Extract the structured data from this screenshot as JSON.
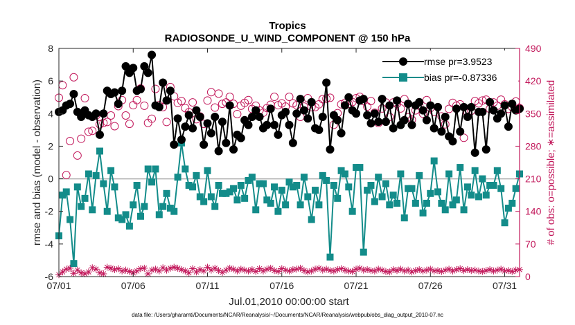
{
  "chart_data": {
    "type": "line",
    "title": "Tropics",
    "subtitle": "RADIOSONDE_U_WIND_COMPONENT @ 150 hPa",
    "xlabel": "Jul.01,2010 00:00:00 start",
    "ylabel": "rmse and bias (model - observation)",
    "ylabel_right": "# of obs: o=possible; ∗=assimilated",
    "footer": "data file: /Users/gharamti/Documents/NCAR/Reanalysis/~/Documents/NCAR/Reanalysis/webpub/obs_diag_output_2010-07.nc",
    "xlim": [
      0,
      31
    ],
    "ylim": [
      -6,
      8
    ],
    "ylim_right": [
      0,
      490
    ],
    "x_ticks": [
      0,
      5,
      10,
      15,
      20,
      25,
      30
    ],
    "x_tick_labels": [
      "07/01",
      "07/06",
      "07/11",
      "07/16",
      "07/21",
      "07/26",
      "07/31"
    ],
    "y_ticks": [
      -6,
      -4,
      -2,
      0,
      2,
      4,
      6,
      8
    ],
    "y_tick_labels": [
      "-6",
      "-4",
      "-2",
      "0",
      "2",
      "4",
      "6",
      "8"
    ],
    "y_ticks_right": [
      0,
      70,
      140,
      210,
      280,
      350,
      420,
      490
    ],
    "y_tick_labels_right": [
      "0",
      "70",
      "140",
      "210",
      "280",
      "350",
      "420",
      "490"
    ],
    "legend": {
      "position": "top-right"
    },
    "colors": {
      "rmse": "#000000",
      "bias": "#138c8a",
      "obs": "#c2185b",
      "zero_line": "#b0b0b0"
    },
    "x": [
      0.0,
      0.25,
      0.5,
      0.75,
      1.0,
      1.25,
      1.5,
      1.75,
      2.0,
      2.25,
      2.5,
      2.75,
      3.0,
      3.25,
      3.5,
      3.75,
      4.0,
      4.25,
      4.5,
      4.75,
      5.0,
      5.25,
      5.5,
      5.75,
      6.0,
      6.25,
      6.5,
      6.75,
      7.0,
      7.25,
      7.5,
      7.75,
      8.0,
      8.25,
      8.5,
      8.75,
      9.0,
      9.25,
      9.5,
      9.75,
      10.0,
      10.25,
      10.5,
      10.75,
      11.0,
      11.25,
      11.5,
      11.75,
      12.0,
      12.25,
      12.5,
      12.75,
      13.0,
      13.25,
      13.5,
      13.75,
      14.0,
      14.25,
      14.5,
      14.75,
      15.0,
      15.25,
      15.5,
      15.75,
      16.0,
      16.25,
      16.5,
      16.75,
      17.0,
      17.25,
      17.5,
      17.75,
      18.0,
      18.25,
      18.5,
      18.75,
      19.0,
      19.25,
      19.5,
      19.75,
      20.0,
      20.25,
      20.5,
      20.75,
      21.0,
      21.25,
      21.5,
      21.75,
      22.0,
      22.25,
      22.5,
      22.75,
      23.0,
      23.25,
      23.5,
      23.75,
      24.0,
      24.25,
      24.5,
      24.75,
      25.0,
      25.25,
      25.5,
      25.75,
      26.0,
      26.25,
      26.5,
      26.75,
      27.0,
      27.25,
      27.5,
      27.75,
      28.0,
      28.25,
      28.5,
      28.75,
      29.0,
      29.25,
      29.5,
      29.75,
      30.0,
      30.25,
      30.5,
      30.75,
      31.0
    ],
    "series": [
      {
        "name": "rmse",
        "legend_label": "rmse pr=3.9523",
        "marker": "circle",
        "values": [
          4.1,
          4.2,
          4.5,
          4.6,
          5.2,
          4.1,
          3.8,
          4.2,
          3.9,
          3.8,
          4.0,
          2.7,
          4.0,
          5.4,
          5.2,
          5.3,
          4.6,
          5.4,
          6.9,
          6.5,
          6.8,
          5.4,
          5.5,
          6.9,
          6.5,
          7.6,
          4.5,
          4.4,
          5.9,
          4.8,
          5.4,
          2.1,
          3.7,
          2.4,
          3.2,
          3.9,
          3.1,
          4.2,
          3.8,
          2.1,
          3.4,
          2.8,
          3.8,
          1.7,
          3.5,
          2.2,
          4.5,
          1.8,
          2.7,
          2.5,
          3.6,
          3.3,
          3.8,
          4.2,
          3.8,
          3.1,
          3.3,
          4.3,
          3.3,
          2.7,
          3.9,
          4.1,
          3.3,
          2.2,
          4.0,
          4.9,
          4.2,
          3.7,
          4.7,
          3.1,
          3.0,
          3.8,
          5.9,
          1.8,
          3.9,
          3.6,
          2.8,
          4.5,
          5.0,
          4.2,
          4.0,
          4.8,
          4.9,
          3.9,
          3.4,
          4.0,
          3.5,
          4.9,
          3.5,
          4.5,
          3.1,
          4.8,
          3.3,
          3.6,
          4.6,
          3.3,
          4.5,
          4.7,
          4.2,
          3.6,
          4.5,
          3.1,
          4.4,
          2.9,
          3.8,
          2.6,
          2.3,
          4.3,
          2.9,
          4.4,
          3.8,
          4.4,
          1.6,
          4.1,
          4.1,
          1.8,
          4.7,
          4.2,
          3.7,
          4.0,
          4.5,
          3.2,
          4.6,
          4.2,
          4.3
        ]
      },
      {
        "name": "bias",
        "legend_label": "bias pr=-0.87336",
        "marker": "square",
        "values": [
          -3.5,
          -1.0,
          -0.8,
          -2.5,
          -5.2,
          -0.5,
          -1.7,
          -1.2,
          0.3,
          -1.9,
          0.2,
          1.7,
          -0.3,
          -2.0,
          0.5,
          -0.5,
          -2.4,
          -2.5,
          -2.2,
          -2.9,
          -1.6,
          -0.4,
          -2.3,
          -1.7,
          0.6,
          -0.2,
          0.6,
          -2.2,
          -1.7,
          -0.9,
          -1.8,
          -2.0,
          0.1,
          2.2,
          0.6,
          -0.4,
          -0.5,
          0.2,
          -1.1,
          -1.4,
          0.5,
          -1.1,
          -1.7,
          -0.4,
          -0.9,
          -0.9,
          -0.8,
          -0.6,
          -1.3,
          -0.4,
          -1.2,
          -0.1,
          0.1,
          -1.9,
          -0.3,
          -0.3,
          -1.3,
          -1.5,
          -0.5,
          -2.0,
          -0.7,
          -1.6,
          -0.2,
          -0.5,
          -0.4,
          -1.6,
          0.1,
          -1.1,
          -2.5,
          -0.7,
          -1.6,
          0.2,
          -0.1,
          -4.8,
          -0.4,
          -1.2,
          0.5,
          0.3,
          -0.5,
          -2.0,
          0.7,
          0.7,
          -4.5,
          -0.7,
          -0.4,
          -1.4,
          0.1,
          -1.1,
          -0.3,
          -1.6,
          -1.0,
          -1.5,
          0.3,
          -2.4,
          -0.6,
          -0.6,
          -1.5,
          0.2,
          -2.1,
          -1.5,
          -0.9,
          1.1,
          -0.8,
          -1.5,
          -1.9,
          0.3,
          -1.6,
          -1.3,
          0.7,
          -1.9,
          -0.5,
          -1.0,
          0.5,
          -1.1,
          0.0,
          -1.0,
          -0.4,
          -0.4,
          0.5,
          -0.6,
          -2.7,
          -1.8,
          -1.5,
          -0.6,
          0.3
        ]
      },
      {
        "name": "obs possible",
        "marker": "open circle",
        "axis": "right",
        "values": [
          384,
          411,
          218,
          291,
          428,
          260,
          296,
          383,
          311,
          313,
          346,
          327,
          330,
          332,
          346,
          323,
          366,
          379,
          346,
          328,
          368,
          379,
          404,
          367,
          330,
          339,
          403,
          368,
          364,
          332,
          407,
          387,
          373,
          377,
          362,
          353,
          374,
          338,
          344,
          328,
          378,
          396,
          363,
          393,
          371,
          374,
          386,
          371,
          349,
          367,
          373,
          379,
          360,
          367,
          357,
          352,
          362,
          369,
          386,
          368,
          372,
          365,
          386,
          372,
          368,
          343,
          365,
          383,
          364,
          364,
          370,
          381,
          382,
          384,
          326,
          351,
          370,
          373,
          371,
          375,
          383,
          386,
          377,
          365,
          377,
          352,
          330,
          361,
          374,
          343,
          374,
          371,
          361,
          381,
          342,
          337,
          357,
          367,
          350,
          379,
          362,
          354,
          364,
          344,
          327,
          360,
          373,
          367,
          370,
          298,
          352,
          356,
          377,
          372,
          378,
          380,
          360,
          374,
          367,
          380,
          370,
          360,
          364,
          376,
          362
        ]
      },
      {
        "name": "obs assimilated",
        "marker": "star",
        "axis": "right",
        "values": [
          4,
          10,
          16,
          18,
          7,
          14,
          8,
          6,
          10,
          19,
          16,
          8,
          6,
          20,
          18,
          15,
          17,
          12,
          14,
          11,
          8,
          12,
          17,
          18,
          6,
          14,
          16,
          12,
          19,
          14,
          18,
          20,
          18,
          15,
          12,
          8,
          17,
          10,
          15,
          12,
          20,
          14,
          18,
          13,
          9,
          14,
          18,
          16,
          12,
          16,
          14,
          12,
          15,
          11,
          17,
          12,
          16,
          18,
          13,
          11,
          17,
          14,
          12,
          15,
          16,
          18,
          13,
          10,
          12,
          16,
          18,
          14,
          16,
          13,
          12,
          15,
          17,
          14,
          12,
          11,
          16,
          18,
          14,
          15,
          13,
          12,
          16,
          14,
          11,
          10,
          15,
          13,
          16,
          12,
          14,
          10,
          13,
          15,
          12,
          14,
          16,
          12,
          13,
          11,
          14,
          16,
          12,
          15,
          17,
          13,
          15,
          13,
          14,
          12,
          11,
          13,
          15,
          12,
          14,
          16,
          12,
          13,
          11,
          14,
          15
        ]
      }
    ]
  }
}
